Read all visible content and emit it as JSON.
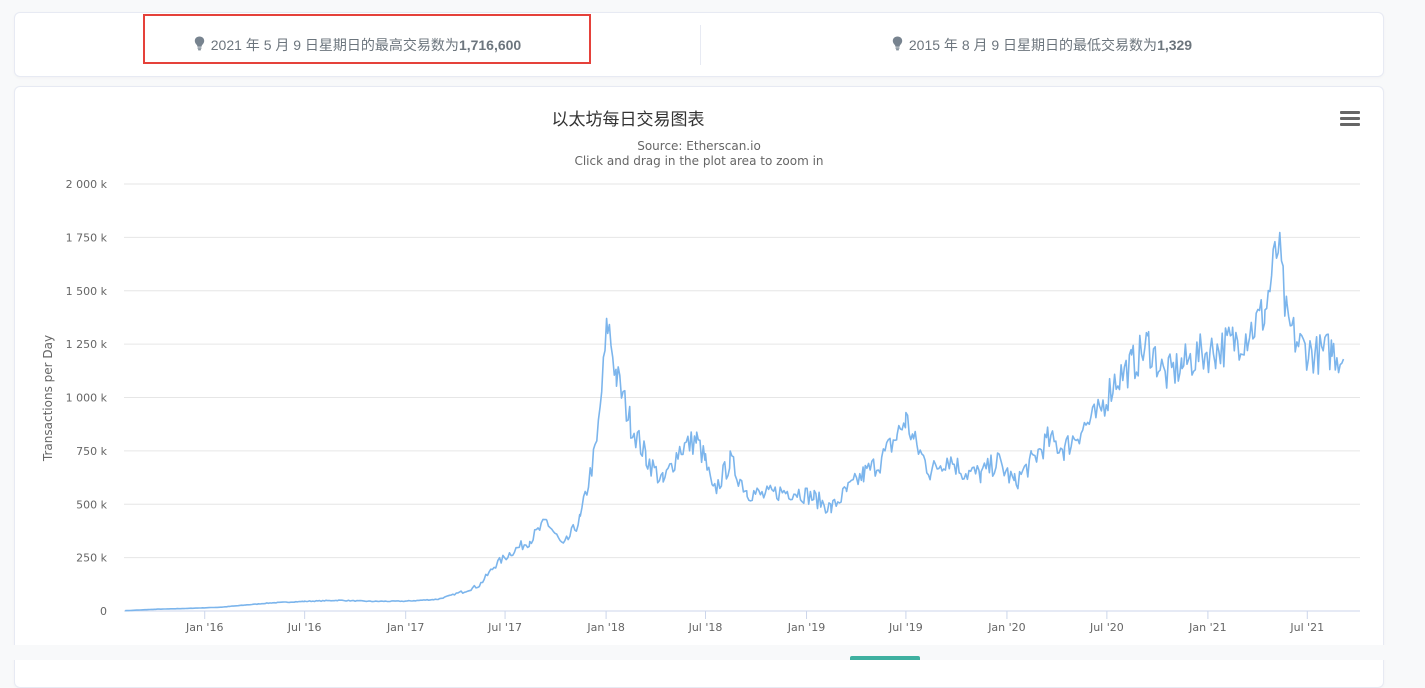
{
  "stats": {
    "max": {
      "icon": "lightbulb-icon",
      "prefix": "2021 年 5 月 9 日星期日的最高交易数为",
      "value": "1,716,600"
    },
    "min": {
      "icon": "lightbulb-icon",
      "prefix": "2015 年 8 月 9 日星期日的最低交易数为",
      "value": "1,329"
    }
  },
  "menu": {
    "icon": "hamburger-menu-icon"
  },
  "colors": {
    "series": "#7cb5ec",
    "highlight": "#e5413a",
    "grid": "#e6e6e6",
    "axis_text": "#666666"
  },
  "chart_data": {
    "type": "line",
    "title": "以太坊每日交易图表",
    "subtitle": "Source: Etherscan.io",
    "subtitle2": "Click and drag in the plot area to zoom in",
    "ylabel": "Transactions per Day",
    "xlabel": "",
    "ylim": [
      0,
      2000000
    ],
    "yticks": [
      0,
      250000,
      500000,
      750000,
      1000000,
      1250000,
      1500000,
      1750000,
      2000000
    ],
    "ytick_labels": [
      "0",
      "250 k",
      "500 k",
      "750 k",
      "1 000 k",
      "1 250 k",
      "1 500 k",
      "1 750 k",
      "2 000 k"
    ],
    "xlim": [
      "2015-08-07",
      "2021-10-05"
    ],
    "xticks": [
      "2016-01-01",
      "2016-07-01",
      "2017-01-01",
      "2017-07-01",
      "2018-01-01",
      "2018-07-01",
      "2019-01-01",
      "2019-07-01",
      "2020-01-01",
      "2020-07-01",
      "2021-01-01",
      "2021-07-01"
    ],
    "xtick_labels": [
      "Jan '16",
      "Jul '16",
      "Jan '17",
      "Jul '17",
      "Jan '18",
      "Jul '18",
      "Jan '19",
      "Jul '19",
      "Jan '20",
      "Jul '20",
      "Jan '21",
      "Jul '21"
    ],
    "grid": true,
    "legend": "none",
    "series": [
      {
        "x": [
          "2015-08-09",
          "2015-10-01",
          "2015-12-01",
          "2016-02-01",
          "2016-03-15",
          "2016-05-01",
          "2016-07-01",
          "2016-09-01",
          "2016-11-01",
          "2017-01-01",
          "2017-03-01",
          "2017-04-15",
          "2017-05-15",
          "2017-06-15",
          "2017-07-15",
          "2017-08-15",
          "2017-09-15",
          "2017-10-15",
          "2017-11-15",
          "2017-12-15",
          "2018-01-04",
          "2018-01-20",
          "2018-02-15",
          "2018-03-15",
          "2018-04-15",
          "2018-05-15",
          "2018-06-15",
          "2018-07-01",
          "2018-07-15",
          "2018-08-15",
          "2018-09-15",
          "2018-10-15",
          "2018-11-15",
          "2018-12-15",
          "2019-01-15",
          "2019-02-15",
          "2019-03-15",
          "2019-04-15",
          "2019-05-15",
          "2019-06-15",
          "2019-07-01",
          "2019-07-15",
          "2019-08-15",
          "2019-09-15",
          "2019-10-15",
          "2019-11-15",
          "2019-12-15",
          "2020-01-15",
          "2020-02-15",
          "2020-03-15",
          "2020-04-15",
          "2020-05-15",
          "2020-06-15",
          "2020-07-15",
          "2020-08-15",
          "2020-09-15",
          "2020-10-15",
          "2020-11-15",
          "2020-12-15",
          "2021-01-15",
          "2021-02-15",
          "2021-03-15",
          "2021-04-15",
          "2021-05-09",
          "2021-05-25",
          "2021-06-15",
          "2021-07-15",
          "2021-08-15",
          "2021-09-05"
        ],
        "y": [
          1329,
          8000,
          12000,
          18000,
          28000,
          38000,
          45000,
          50000,
          45000,
          46000,
          55000,
          90000,
          120000,
          220000,
          280000,
          330000,
          420000,
          300000,
          430000,
          780000,
          1350000,
          1100000,
          880000,
          720000,
          600000,
          760000,
          800000,
          700000,
          550000,
          700000,
          560000,
          540000,
          560000,
          560000,
          530000,
          480000,
          560000,
          640000,
          700000,
          820000,
          900000,
          800000,
          650000,
          720000,
          650000,
          640000,
          700000,
          600000,
          700000,
          800000,
          760000,
          850000,
          920000,
          1080000,
          1150000,
          1250000,
          1100000,
          1150000,
          1200000,
          1220000,
          1260000,
          1300000,
          1400000,
          1716600,
          1350000,
          1250000,
          1200000,
          1220000,
          1180000
        ]
      }
    ]
  }
}
